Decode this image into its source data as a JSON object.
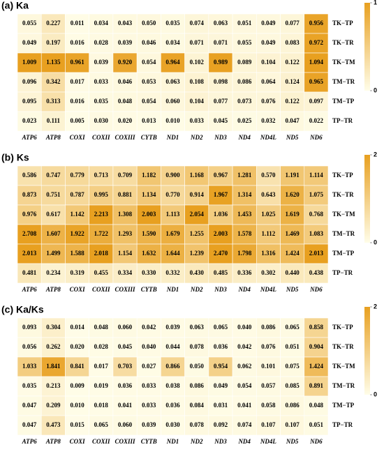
{
  "chart_data": [
    {
      "type": "heatmap",
      "title": "(a) Ka",
      "categories": [
        "ATP6",
        "ATP8",
        "COXI",
        "COXII",
        "COXIII",
        "CYTB",
        "ND1",
        "ND2",
        "ND3",
        "ND4",
        "ND4L",
        "ND5",
        "ND6"
      ],
      "rows": [
        "TK−TP",
        "TK−TR",
        "TK−TM",
        "TM−TR",
        "TM−TP",
        "TP−TR"
      ],
      "values": [
        [
          0.055,
          0.227,
          0.011,
          0.034,
          0.043,
          0.05,
          0.035,
          0.074,
          0.063,
          0.051,
          0.049,
          0.077,
          0.956
        ],
        [
          0.049,
          0.197,
          0.016,
          0.028,
          0.039,
          0.046,
          0.034,
          0.071,
          0.071,
          0.055,
          0.049,
          0.083,
          0.972
        ],
        [
          1.009,
          1.135,
          0.961,
          0.039,
          0.92,
          0.054,
          0.964,
          0.102,
          0.989,
          0.089,
          0.104,
          0.122,
          1.094
        ],
        [
          0.096,
          0.342,
          0.017,
          0.033,
          0.046,
          0.053,
          0.063,
          0.108,
          0.098,
          0.086,
          0.064,
          0.124,
          0.965
        ],
        [
          0.095,
          0.313,
          0.016,
          0.035,
          0.048,
          0.054,
          0.06,
          0.104,
          0.077,
          0.073,
          0.076,
          0.122,
          0.097
        ],
        [
          0.023,
          0.111,
          0.005,
          0.03,
          0.02,
          0.013,
          0.01,
          0.033,
          0.045,
          0.025,
          0.032,
          0.047,
          0.022
        ]
      ],
      "value_labels": [
        [
          "0.055",
          "0.227",
          "0.011",
          "0.034",
          "0.043",
          "0.050",
          "0.035",
          "0.074",
          "0.063",
          "0.051",
          "0.049",
          "0.077",
          "0.956"
        ],
        [
          "0.049",
          "0.197",
          "0.016",
          "0.028",
          "0.039",
          "0.046",
          "0.034",
          "0.071",
          "0.071",
          "0.055",
          "0.049",
          "0.083",
          "0.972"
        ],
        [
          "1.009",
          "1.135",
          "0.961",
          "0.039",
          "0.920",
          "0.054",
          "0.964",
          "0.102",
          "0.989",
          "0.089",
          "0.104",
          "0.122",
          "1.094"
        ],
        [
          "0.096",
          "0.342",
          "0.017",
          "0.033",
          "0.046",
          "0.053",
          "0.063",
          "0.108",
          "0.098",
          "0.086",
          "0.064",
          "0.124",
          "0.965"
        ],
        [
          "0.095",
          "0.313",
          "0.016",
          "0.035",
          "0.048",
          "0.054",
          "0.060",
          "0.104",
          "0.077",
          "0.073",
          "0.076",
          "0.122",
          "0.097"
        ],
        [
          "0.023",
          "0.111",
          "0.005",
          "0.030",
          "0.020",
          "0.013",
          "0.010",
          "0.033",
          "0.045",
          "0.025",
          "0.032",
          "0.047",
          "0.022"
        ]
      ],
      "zlim": [
        0,
        1
      ],
      "zticks": [
        0,
        1
      ],
      "colors": [
        "#fffde8",
        "#e8a020"
      ]
    },
    {
      "type": "heatmap",
      "title": "(b) Ks",
      "categories": [
        "ATP6",
        "ATP8",
        "COXI",
        "COXII",
        "COXIII",
        "CYTB",
        "ND1",
        "ND2",
        "ND3",
        "ND4",
        "ND4L",
        "ND5",
        "ND6"
      ],
      "rows": [
        "TK−TP",
        "TK−TR",
        "TK−TM",
        "TM−TR",
        "TM−TP",
        "TP−TR"
      ],
      "values": [
        [
          0.586,
          0.747,
          0.779,
          0.713,
          0.709,
          1.182,
          0.9,
          1.168,
          0.967,
          1.281,
          0.57,
          1.191,
          1.114
        ],
        [
          0.873,
          0.751,
          0.787,
          0.995,
          0.881,
          1.134,
          0.77,
          0.914,
          1.967,
          1.314,
          0.643,
          1.62,
          1.075
        ],
        [
          0.976,
          0.617,
          1.142,
          2.213,
          1.308,
          2.003,
          1.113,
          2.054,
          1.036,
          1.453,
          1.025,
          1.619,
          0.768
        ],
        [
          2.708,
          1.607,
          1.922,
          1.722,
          1.293,
          1.59,
          1.679,
          1.255,
          2.003,
          1.578,
          1.112,
          1.469,
          1.083
        ],
        [
          2.013,
          1.499,
          1.588,
          2.018,
          1.154,
          1.632,
          1.644,
          1.239,
          2.47,
          1.798,
          1.316,
          1.424,
          2.013
        ],
        [
          0.481,
          0.234,
          0.319,
          0.455,
          0.334,
          0.33,
          0.332,
          0.43,
          0.485,
          0.336,
          0.302,
          0.44,
          0.438
        ]
      ],
      "value_labels": [
        [
          "0.586",
          "0.747",
          "0.779",
          "0.713",
          "0.709",
          "1.182",
          "0.900",
          "1.168",
          "0.967",
          "1.281",
          "0.570",
          "1.191",
          "1.114"
        ],
        [
          "0.873",
          "0.751",
          "0.787",
          "0.995",
          "0.881",
          "1.134",
          "0.770",
          "0.914",
          "1.967",
          "1.314",
          "0.643",
          "1.620",
          "1.075"
        ],
        [
          "0.976",
          "0.617",
          "1.142",
          "2.213",
          "1.308",
          "2.003",
          "1.113",
          "2.054",
          "1.036",
          "1.453",
          "1.025",
          "1.619",
          "0.768"
        ],
        [
          "2.708",
          "1.607",
          "1.922",
          "1.722",
          "1.293",
          "1.590",
          "1.679",
          "1.255",
          "2.003",
          "1.578",
          "1.112",
          "1.469",
          "1.083"
        ],
        [
          "2.013",
          "1.499",
          "1.588",
          "2.018",
          "1.154",
          "1.632",
          "1.644",
          "1.239",
          "2.470",
          "1.798",
          "1.316",
          "1.424",
          "2.013"
        ],
        [
          "0.481",
          "0.234",
          "0.319",
          "0.455",
          "0.334",
          "0.330",
          "0.332",
          "0.430",
          "0.485",
          "0.336",
          "0.302",
          "0.440",
          "0.438"
        ]
      ],
      "zlim": [
        0,
        2
      ],
      "zticks": [
        0,
        2
      ],
      "colors": [
        "#fffde8",
        "#e8a020"
      ]
    },
    {
      "type": "heatmap",
      "title": "(c) Ka/Ks",
      "categories": [
        "ATP6",
        "ATP8",
        "COXI",
        "COXII",
        "COXIII",
        "CYTB",
        "ND1",
        "ND2",
        "ND3",
        "ND4",
        "ND4L",
        "ND5",
        "ND6"
      ],
      "rows": [
        "TK−TP",
        "TK−TR",
        "TK−TM",
        "TM−TR",
        "TM−TP",
        "TP−TR"
      ],
      "values": [
        [
          0.093,
          0.304,
          0.014,
          0.048,
          0.06,
          0.042,
          0.039,
          0.063,
          0.065,
          0.04,
          0.086,
          0.065,
          0.858
        ],
        [
          0.056,
          0.262,
          0.02,
          0.028,
          0.045,
          0.04,
          0.044,
          0.078,
          0.036,
          0.042,
          0.076,
          0.051,
          0.904
        ],
        [
          1.033,
          1.841,
          0.841,
          0.017,
          0.703,
          0.027,
          0.866,
          0.05,
          0.954,
          0.062,
          0.101,
          0.075,
          1.424
        ],
        [
          0.035,
          0.213,
          0.009,
          0.019,
          0.036,
          0.033,
          0.038,
          0.086,
          0.049,
          0.054,
          0.057,
          0.085,
          0.891
        ],
        [
          0.047,
          0.209,
          0.01,
          0.018,
          0.041,
          0.033,
          0.036,
          0.084,
          0.031,
          0.041,
          0.058,
          0.086,
          0.048
        ],
        [
          0.047,
          0.473,
          0.015,
          0.065,
          0.06,
          0.039,
          0.03,
          0.078,
          0.092,
          0.074,
          0.107,
          0.107,
          0.051
        ]
      ],
      "value_labels": [
        [
          "0.093",
          "0.304",
          "0.014",
          "0.048",
          "0.060",
          "0.042",
          "0.039",
          "0.063",
          "0.065",
          "0.040",
          "0.086",
          "0.065",
          "0.858"
        ],
        [
          "0.056",
          "0.262",
          "0.020",
          "0.028",
          "0.045",
          "0.040",
          "0.044",
          "0.078",
          "0.036",
          "0.042",
          "0.076",
          "0.051",
          "0.904"
        ],
        [
          "1.033",
          "1.841",
          "0.841",
          "0.017",
          "0.703",
          "0.027",
          "0.866",
          "0.050",
          "0.954",
          "0.062",
          "0.101",
          "0.075",
          "1.424"
        ],
        [
          "0.035",
          "0.213",
          "0.009",
          "0.019",
          "0.036",
          "0.033",
          "0.038",
          "0.086",
          "0.049",
          "0.054",
          "0.057",
          "0.085",
          "0.891"
        ],
        [
          "0.047",
          "0.209",
          "0.010",
          "0.018",
          "0.041",
          "0.033",
          "0.036",
          "0.084",
          "0.031",
          "0.041",
          "0.058",
          "0.086",
          "0.048"
        ],
        [
          "0.047",
          "0.473",
          "0.015",
          "0.065",
          "0.060",
          "0.039",
          "0.030",
          "0.078",
          "0.092",
          "0.074",
          "0.107",
          "0.107",
          "0.051"
        ]
      ],
      "zlim": [
        0,
        2
      ],
      "zticks": [
        0,
        2
      ],
      "colors": [
        "#fffde8",
        "#e8a020"
      ]
    }
  ]
}
